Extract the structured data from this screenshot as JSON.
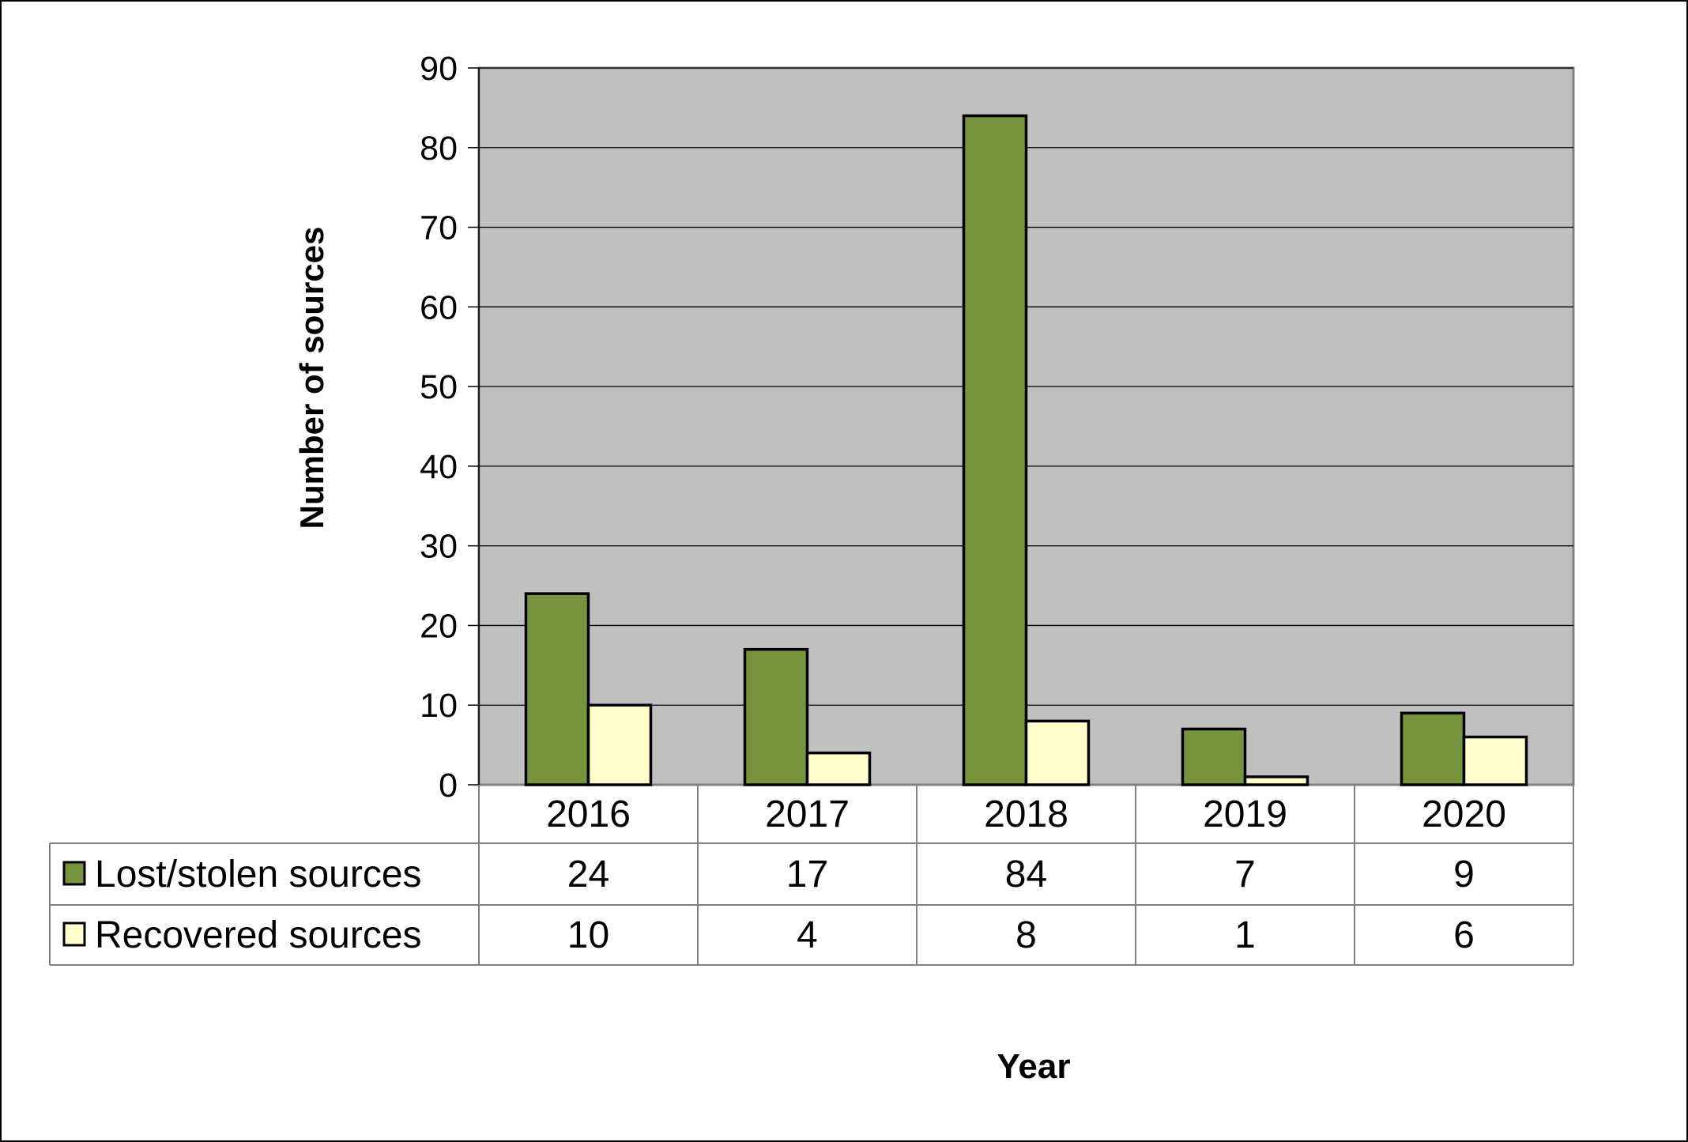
{
  "chart_data": {
    "type": "bar",
    "categories": [
      "2016",
      "2017",
      "2018",
      "2019",
      "2020"
    ],
    "series": [
      {
        "name": "Lost/stolen sources",
        "values": [
          24,
          17,
          84,
          7,
          9
        ],
        "color": "#77933C"
      },
      {
        "name": "Recovered sources",
        "values": [
          10,
          4,
          8,
          1,
          6
        ],
        "color": "#FFFFCC"
      }
    ],
    "title": "",
    "xlabel": "Year",
    "ylabel": "Number of sources",
    "ylim": [
      0,
      90
    ],
    "yticks": [
      0,
      10,
      20,
      30,
      40,
      50,
      60,
      70,
      80,
      90
    ],
    "grid": true,
    "legend": "data-table",
    "colors": {
      "plot_background": "#C0C0C0",
      "gridline": "#000000",
      "bar_outline": "#000000",
      "table_border": "#808080"
    }
  }
}
